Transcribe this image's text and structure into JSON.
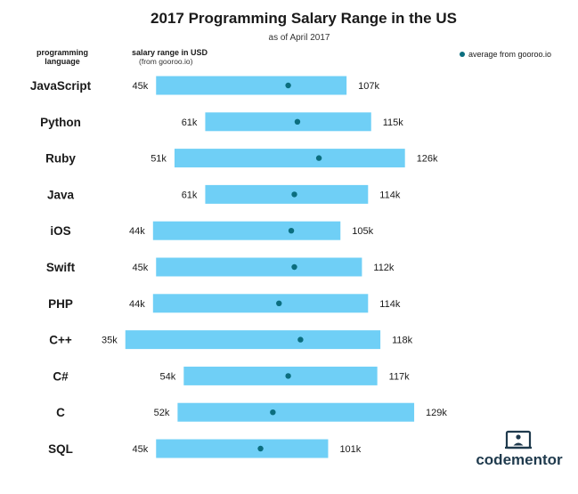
{
  "chart_data": {
    "type": "range-bar",
    "title": "2017 Programming Salary Range in the US",
    "subtitle": "as of April 2017",
    "column_headers": {
      "language_line1": "programming",
      "language_line2": "language",
      "range_line1": "salary range in USD",
      "range_line2": "(from gooroo.io)"
    },
    "legend": {
      "label": "average from gooroo.io",
      "placement": "top-right"
    },
    "bar_color": "#6fcff6",
    "marker_color": "#0b6e7f",
    "x_range": [
      0,
      140
    ],
    "rows": [
      {
        "language": "JavaScript",
        "min": 45,
        "max": 107,
        "avg": 88,
        "min_label": "45k",
        "max_label": "107k"
      },
      {
        "language": "Python",
        "min": 61,
        "max": 115,
        "avg": 91,
        "min_label": "61k",
        "max_label": "115k"
      },
      {
        "language": "Ruby",
        "min": 51,
        "max": 126,
        "avg": 98,
        "min_label": "51k",
        "max_label": "126k"
      },
      {
        "language": "Java",
        "min": 61,
        "max": 114,
        "avg": 90,
        "min_label": "61k",
        "max_label": "114k"
      },
      {
        "language": "iOS",
        "min": 44,
        "max": 105,
        "avg": 89,
        "min_label": "44k",
        "max_label": "105k"
      },
      {
        "language": "Swift",
        "min": 45,
        "max": 112,
        "avg": 90,
        "min_label": "45k",
        "max_label": "112k"
      },
      {
        "language": "PHP",
        "min": 44,
        "max": 114,
        "avg": 85,
        "min_label": "44k",
        "max_label": "114k"
      },
      {
        "language": "C++",
        "min": 35,
        "max": 118,
        "avg": 92,
        "min_label": "35k",
        "max_label": "118k"
      },
      {
        "language": "C#",
        "min": 54,
        "max": 117,
        "avg": 88,
        "min_label": "54k",
        "max_label": "117k"
      },
      {
        "language": "C",
        "min": 52,
        "max": 129,
        "avg": 83,
        "min_label": "52k",
        "max_label": "129k"
      },
      {
        "language": "SQL",
        "min": 45,
        "max": 101,
        "avg": 79,
        "min_label": "45k",
        "max_label": "101k"
      }
    ]
  },
  "brand": {
    "name": "codementor",
    "icon": "presenter-screen-icon",
    "color": "#1f3a4d"
  }
}
